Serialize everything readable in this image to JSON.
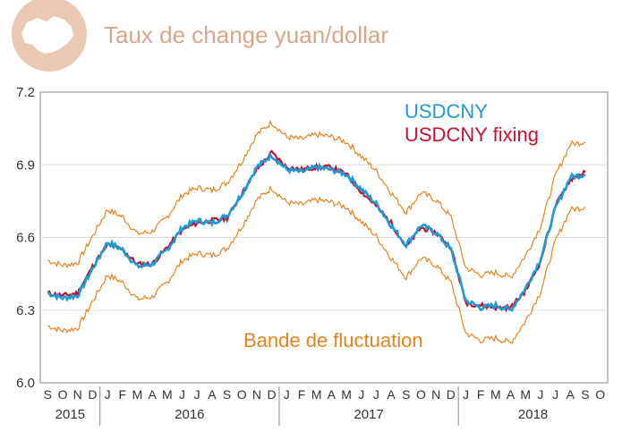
{
  "chart_data": {
    "type": "line",
    "title": "Taux de change yuan/dollar",
    "ylim": [
      6.0,
      7.2
    ],
    "yticks": [
      6.0,
      6.3,
      6.6,
      6.9,
      7.2
    ],
    "x_range": [
      "2015-09-01",
      "2018-10-31"
    ],
    "months": [
      {
        "label": "S",
        "date": "2015-09"
      },
      {
        "label": "O",
        "date": "2015-10"
      },
      {
        "label": "N",
        "date": "2015-11"
      },
      {
        "label": "D",
        "date": "2015-12"
      },
      {
        "label": "J",
        "date": "2016-01"
      },
      {
        "label": "F",
        "date": "2016-02"
      },
      {
        "label": "M",
        "date": "2016-03"
      },
      {
        "label": "A",
        "date": "2016-04"
      },
      {
        "label": "M",
        "date": "2016-05"
      },
      {
        "label": "J",
        "date": "2016-06"
      },
      {
        "label": "J",
        "date": "2016-07"
      },
      {
        "label": "A",
        "date": "2016-08"
      },
      {
        "label": "S",
        "date": "2016-09"
      },
      {
        "label": "O",
        "date": "2016-10"
      },
      {
        "label": "N",
        "date": "2016-11"
      },
      {
        "label": "D",
        "date": "2016-12"
      },
      {
        "label": "J",
        "date": "2017-01"
      },
      {
        "label": "F",
        "date": "2017-02"
      },
      {
        "label": "M",
        "date": "2017-03"
      },
      {
        "label": "A",
        "date": "2017-04"
      },
      {
        "label": "M",
        "date": "2017-05"
      },
      {
        "label": "J",
        "date": "2017-06"
      },
      {
        "label": "J",
        "date": "2017-07"
      },
      {
        "label": "A",
        "date": "2017-08"
      },
      {
        "label": "S",
        "date": "2017-09"
      },
      {
        "label": "O",
        "date": "2017-10"
      },
      {
        "label": "N",
        "date": "2017-11"
      },
      {
        "label": "D",
        "date": "2017-12"
      },
      {
        "label": "J",
        "date": "2018-01"
      },
      {
        "label": "F",
        "date": "2018-02"
      },
      {
        "label": "M",
        "date": "2018-03"
      },
      {
        "label": "A",
        "date": "2018-04"
      },
      {
        "label": "M",
        "date": "2018-05"
      },
      {
        "label": "J",
        "date": "2018-06"
      },
      {
        "label": "J",
        "date": "2018-07"
      },
      {
        "label": "A",
        "date": "2018-08"
      },
      {
        "label": "S",
        "date": "2018-09"
      },
      {
        "label": "O",
        "date": "2018-10"
      }
    ],
    "years": [
      "2015",
      "2016",
      "2017",
      "2018"
    ],
    "x": [
      "2015-09",
      "2015-10",
      "2015-11",
      "2015-12",
      "2016-01",
      "2016-02",
      "2016-03",
      "2016-04",
      "2016-05",
      "2016-06",
      "2016-07",
      "2016-08",
      "2016-09",
      "2016-10",
      "2016-11",
      "2016-12",
      "2017-01",
      "2017-02",
      "2017-03",
      "2017-04",
      "2017-05",
      "2017-06",
      "2017-07",
      "2017-08",
      "2017-09",
      "2017-10",
      "2017-11",
      "2017-12",
      "2018-01",
      "2018-02",
      "2018-03",
      "2018-04",
      "2018-05",
      "2018-06",
      "2018-07",
      "2018-08",
      "2018-09"
    ],
    "series": [
      {
        "name": "USDCNY",
        "color": "#1e9ad6",
        "values": [
          6.37,
          6.35,
          6.36,
          6.47,
          6.58,
          6.55,
          6.48,
          6.49,
          6.55,
          6.64,
          6.67,
          6.66,
          6.69,
          6.78,
          6.89,
          6.94,
          6.88,
          6.87,
          6.89,
          6.88,
          6.86,
          6.8,
          6.74,
          6.65,
          6.57,
          6.65,
          6.62,
          6.55,
          6.34,
          6.31,
          6.32,
          6.3,
          6.39,
          6.51,
          6.72,
          6.85,
          6.86
        ]
      },
      {
        "name": "USDCNY fixing",
        "color": "#c8102e",
        "values": [
          6.37,
          6.36,
          6.37,
          6.48,
          6.57,
          6.55,
          6.49,
          6.49,
          6.56,
          6.63,
          6.66,
          6.67,
          6.68,
          6.78,
          6.88,
          6.95,
          6.89,
          6.88,
          6.89,
          6.89,
          6.86,
          6.79,
          6.73,
          6.66,
          6.56,
          6.64,
          6.62,
          6.56,
          6.33,
          6.32,
          6.31,
          6.31,
          6.38,
          6.5,
          6.73,
          6.84,
          6.87
        ]
      }
    ],
    "band": {
      "name": "Bande de fluctuation",
      "color": "#e8821e",
      "width": 0.135
    },
    "colors": {
      "header": "#d9a58a",
      "axis": "#555555",
      "gridline": "#dddddd"
    }
  }
}
